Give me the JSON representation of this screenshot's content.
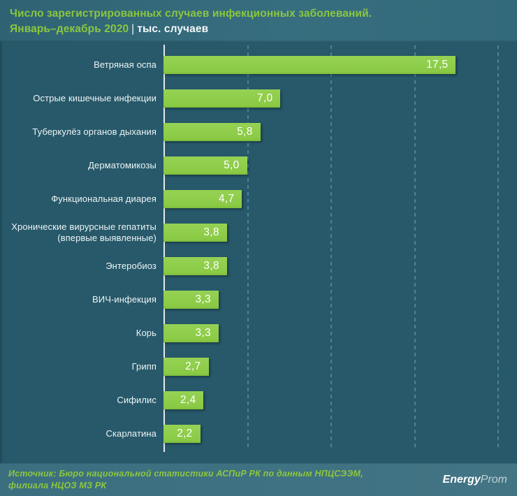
{
  "header": {
    "title_line1": "Число зарегистрированных случаев инфекционных заболеваний.",
    "title_period": "Январь–декабрь 2020",
    "title_separator": "|",
    "title_unit": "тыс. случаев"
  },
  "chart_data": {
    "type": "bar",
    "orientation": "horizontal",
    "title": "Число зарегистрированных случаев инфекционных заболеваний. Январь–декабрь 2020",
    "unit": "тыс. случаев",
    "categories": [
      "Ветряная оспа",
      "Острые кишечные инфекции",
      "Туберкулёз органов дыхания",
      "Дерматомикозы",
      "Функциональная диарея",
      "Хронические вирурсные гепатиты (впервые выявленные)",
      "Энтеробиоз",
      "ВИЧ-инфекция",
      "Корь",
      "Грипп",
      "Сифилис",
      "Скарлатина"
    ],
    "values": [
      17.5,
      7.0,
      5.8,
      5.0,
      4.7,
      3.8,
      3.8,
      3.3,
      3.3,
      2.7,
      2.4,
      2.2
    ],
    "value_labels": [
      "17,5",
      "7,0",
      "5,8",
      "5,0",
      "4,7",
      "3,8",
      "3,8",
      "3,3",
      "3,3",
      "2,7",
      "2,4",
      "2,2"
    ],
    "xlim": [
      0,
      20.95
    ],
    "gridlines_x": [
      5,
      10,
      15,
      20
    ],
    "grid_style": "dashed-vertical",
    "legend": "none",
    "bar_color": "#8cca47",
    "value_label_color": "#ffffff",
    "background_color": "#27596a"
  },
  "footer": {
    "source_line1": "Источник: Бюро национальной  статистики АСПиР РК по данным  НПЦСЭЭМ,",
    "source_line2": "филиала  НЦОЗ МЗ РК",
    "logo_text_bold": "Energy",
    "logo_text_light": "Prom",
    "logo_icon": "energyprom-icon"
  },
  "colors": {
    "header_background": "#346b7c",
    "chart_background": "#27596a",
    "footer_background": "#3e7282",
    "title_green": "#8ac640",
    "title_white": "#f4f8f9",
    "gridline": "#4e8da0",
    "axis_line": "#e3ebed",
    "category_label": "#eff5f6",
    "source_text": "#8dc63f"
  }
}
